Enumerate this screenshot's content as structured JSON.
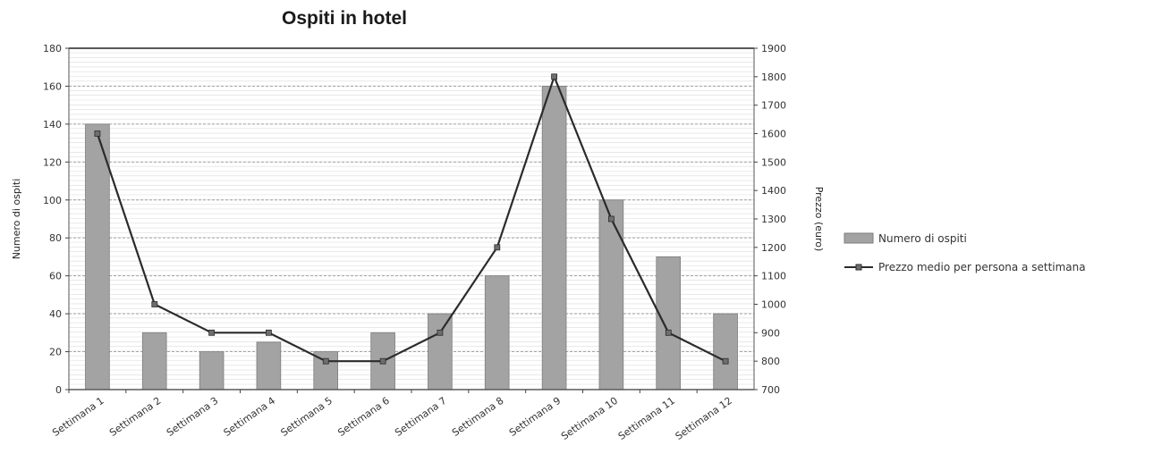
{
  "chart_data": {
    "type": "bar",
    "title": "Ospiti in hotel",
    "categories": [
      "Settimana 1",
      "Settimana 2",
      "Settimana 3",
      "Settimana 4",
      "Settimana 5",
      "Settimana 6",
      "Settimana 7",
      "Settimana 8",
      "Settimana 9",
      "Settimana 10",
      "Settimana 11",
      "Settimana 12"
    ],
    "ylabel": "Numero di ospiti",
    "y2label": "Prezzo (euro)",
    "ylim": [
      0,
      180
    ],
    "y2lim": [
      700,
      1900
    ],
    "yticks": [
      0,
      20,
      40,
      60,
      80,
      100,
      120,
      140,
      160,
      180
    ],
    "y2ticks": [
      700,
      800,
      900,
      1000,
      1100,
      1200,
      1300,
      1400,
      1500,
      1600,
      1700,
      1800,
      1900
    ],
    "grid": true,
    "legend_position": "right",
    "series": [
      {
        "name": "Numero di ospiti",
        "type": "bar",
        "axis": "left",
        "color": "#a3a3a3",
        "values": [
          140,
          30,
          20,
          25,
          20,
          30,
          40,
          60,
          160,
          100,
          70,
          40
        ]
      },
      {
        "name": "Prezzo medio per persona a settimana",
        "type": "line",
        "axis": "right",
        "color": "#2b2b2b",
        "values": [
          1600,
          1000,
          900,
          900,
          800,
          800,
          900,
          1200,
          1800,
          1300,
          900,
          800
        ]
      }
    ]
  }
}
